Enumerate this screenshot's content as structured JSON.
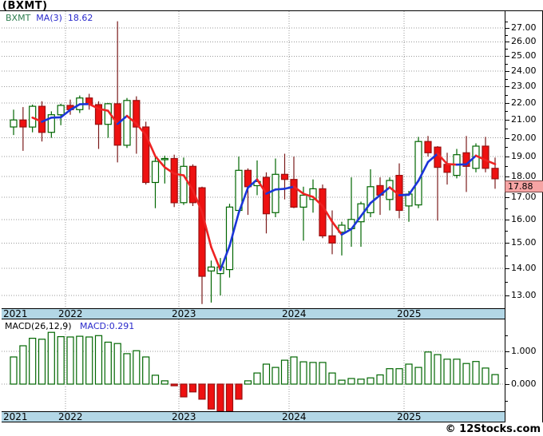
{
  "page": {
    "title": "(BXMT)",
    "copyright": "© 12Stocks.com"
  },
  "main_chart": {
    "legend": {
      "symbol": "BXMT",
      "ma_label": "MA(3)",
      "ma_value": "18.62"
    },
    "price_tag": "17.88",
    "y_axis_labels": [
      "27.00",
      "26.00",
      "25.00",
      "24.00",
      "23.00",
      "22.00",
      "21.00",
      "20.00",
      "19.00",
      "18.00",
      "17.00",
      "16.00",
      "15.00",
      "14.00",
      "13.00"
    ]
  },
  "x_axis": {
    "years": [
      "2021",
      "2022",
      "2023",
      "2024",
      "2025"
    ]
  },
  "macd_panel": {
    "legend_name": "MACD(26,12,9)",
    "legend_value": "MACD:0.291",
    "y_axis_labels": [
      "1.000",
      "0.000"
    ]
  },
  "colors": {
    "up_stroke": "#006600",
    "up_fill": "#ffffff",
    "down_fill": "#ee1111",
    "down_stroke": "#991111",
    "down_wick": "#7a1a1a",
    "ma_rising": "#1b35d8",
    "ma_falling": "#ee2222",
    "grid": "#999999",
    "band_bg": "#b3d7e6",
    "price_tag_bg": "#f6a4a4",
    "legend_symbol_green": "#2e7d4f",
    "legend_blue": "#2a2acb"
  },
  "chart_data": {
    "type": "candlestick",
    "symbol": "BXMT",
    "interval": "monthly",
    "yscale": "log",
    "price_ylim": [
      12.6,
      28.0
    ],
    "grid": true,
    "legend_position": "top-left",
    "x_year_tick_labels": [
      "2021",
      "2022",
      "2023",
      "2024",
      "2025"
    ],
    "year_start_candle_index": {
      "2022": 6,
      "2023": 18,
      "2024": 30,
      "2025": 42
    },
    "candles_ohlc": [
      [
        20.6,
        21.6,
        20.15,
        21.0
      ],
      [
        21.0,
        21.75,
        19.3,
        20.6
      ],
      [
        20.6,
        21.9,
        20.3,
        21.8
      ],
      [
        21.8,
        22.1,
        19.8,
        20.3
      ],
      [
        20.3,
        21.5,
        20.0,
        21.3
      ],
      [
        21.3,
        21.95,
        20.7,
        21.85
      ],
      [
        21.85,
        22.2,
        21.3,
        21.6
      ],
      [
        21.6,
        22.45,
        21.4,
        22.3
      ],
      [
        22.3,
        22.55,
        21.6,
        21.9
      ],
      [
        21.9,
        22.1,
        19.4,
        20.75
      ],
      [
        20.75,
        22.0,
        20.0,
        21.95
      ],
      [
        21.95,
        27.5,
        18.7,
        19.6
      ],
      [
        19.6,
        22.3,
        19.45,
        22.15
      ],
      [
        22.15,
        22.4,
        19.15,
        20.6
      ],
      [
        20.6,
        20.9,
        17.6,
        17.7
      ],
      [
        17.7,
        19.0,
        16.5,
        18.75
      ],
      [
        18.85,
        19.05,
        17.65,
        18.9
      ],
      [
        18.9,
        19.1,
        16.55,
        16.75
      ],
      [
        16.75,
        18.95,
        16.65,
        18.5
      ],
      [
        18.5,
        18.6,
        16.6,
        16.75
      ],
      [
        17.45,
        17.5,
        12.7,
        13.7
      ],
      [
        13.9,
        14.3,
        12.75,
        14.05
      ],
      [
        13.8,
        14.4,
        13.0,
        14.05
      ],
      [
        13.95,
        16.7,
        13.65,
        16.55
      ],
      [
        16.4,
        19.0,
        16.35,
        18.3
      ],
      [
        18.3,
        18.4,
        16.2,
        17.5
      ],
      [
        17.55,
        18.8,
        17.1,
        17.75
      ],
      [
        17.95,
        18.2,
        15.4,
        16.25
      ],
      [
        16.3,
        18.9,
        16.1,
        18.1
      ],
      [
        18.1,
        19.15,
        16.9,
        17.85
      ],
      [
        17.85,
        19.0,
        16.5,
        16.55
      ],
      [
        16.55,
        17.5,
        15.1,
        17.1
      ],
      [
        16.9,
        17.85,
        16.3,
        17.4
      ],
      [
        17.4,
        17.6,
        15.2,
        15.3
      ],
      [
        15.3,
        16.4,
        14.55,
        15.0
      ],
      [
        15.45,
        15.9,
        14.5,
        15.75
      ],
      [
        15.6,
        17.95,
        14.85,
        16.0
      ],
      [
        15.9,
        16.8,
        14.85,
        16.7
      ],
      [
        16.3,
        18.35,
        16.1,
        17.5
      ],
      [
        17.55,
        17.95,
        16.2,
        17.1
      ],
      [
        16.9,
        17.95,
        16.4,
        17.8
      ],
      [
        18.05,
        18.65,
        16.05,
        16.4
      ],
      [
        16.6,
        17.3,
        15.9,
        17.15
      ],
      [
        16.65,
        20.05,
        16.5,
        19.8
      ],
      [
        19.8,
        20.1,
        19.0,
        19.2
      ],
      [
        19.5,
        19.55,
        15.95,
        18.45
      ],
      [
        18.6,
        19.2,
        17.6,
        18.2
      ],
      [
        18.05,
        19.4,
        17.9,
        19.1
      ],
      [
        19.2,
        20.1,
        17.25,
        18.5
      ],
      [
        18.4,
        19.7,
        18.2,
        19.55
      ],
      [
        19.55,
        20.05,
        18.2,
        18.4
      ],
      [
        18.4,
        18.95,
        17.4,
        17.88
      ]
    ],
    "moving_average": {
      "name": "MA(3)",
      "period": 3,
      "source": "close",
      "last_value": 18.62
    },
    "last_close": 17.88,
    "macd": {
      "params": "26,12,9",
      "last_value": 0.291,
      "ylim": [
        -1.0,
        1.8
      ],
      "axis_values": [
        1.0,
        0.0
      ],
      "histogram": [
        0.83,
        1.17,
        1.4,
        1.37,
        1.58,
        1.45,
        1.44,
        1.46,
        1.44,
        1.48,
        1.28,
        1.24,
        0.93,
        1.02,
        0.83,
        0.27,
        0.1,
        -0.05,
        -0.39,
        -0.24,
        -0.46,
        -0.76,
        -0.83,
        -0.83,
        -0.46,
        0.1,
        0.34,
        0.61,
        0.51,
        0.73,
        0.83,
        0.68,
        0.66,
        0.66,
        0.34,
        0.12,
        0.17,
        0.15,
        0.19,
        0.28,
        0.47,
        0.47,
        0.61,
        0.51,
        0.98,
        0.9,
        0.76,
        0.76,
        0.63,
        0.69,
        0.49,
        0.291
      ]
    }
  }
}
